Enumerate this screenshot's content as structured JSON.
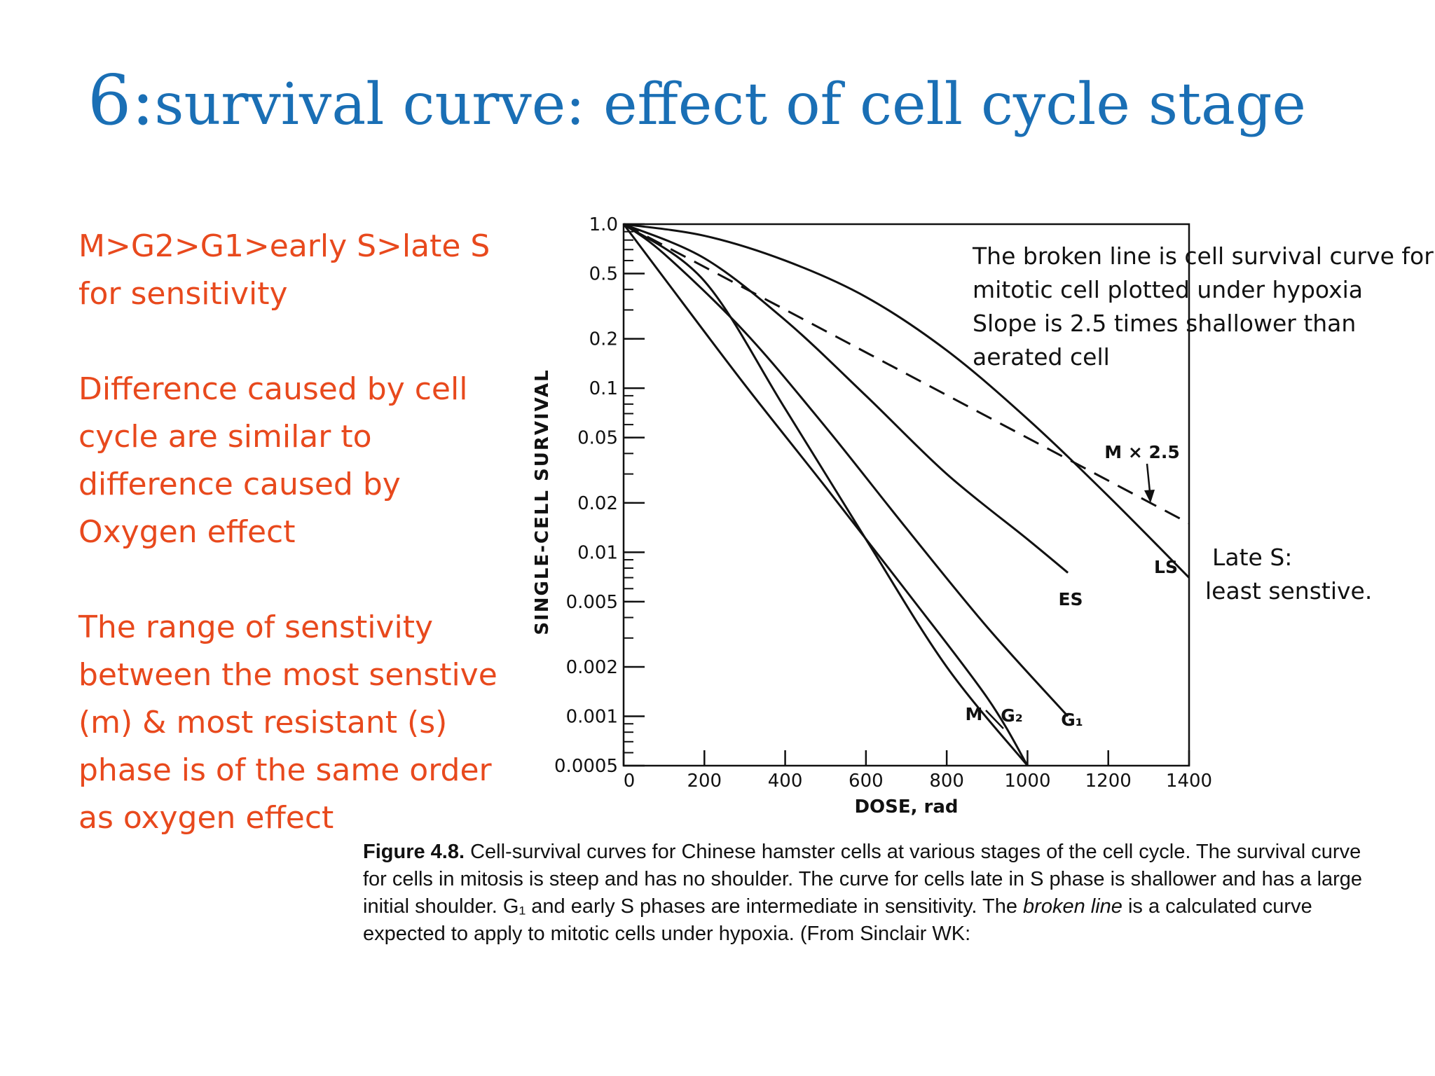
{
  "slide": {
    "title_num": "6:",
    "title_rest": "survival curve: effect of cell cycle stage",
    "bullets": [
      "M>G2>G1>early S>late S for sensitivity",
      "Difference caused by cell cycle are similar to difference caused by Oxygen effect",
      "The range of senstivity between the most senstive (m) & most resistant (s) phase is of the same order as oxygen effect"
    ],
    "annotation_broken_line": [
      "The broken line is cell survival curve for",
      "mitotic cell plotted under hypoxia",
      "Slope is 2.5 times shallower than",
      "aerated cell"
    ],
    "annotation_late_s": [
      "Late S:",
      "least senstive."
    ],
    "caption": {
      "fig_label": "Figure 4.8.",
      "part1": " Cell-survival curves for Chinese hamster cells at various stages of the cell cycle. The survival curve for cells in mitosis is steep and has no shoulder. The curve for cells late in S phase is shallower and has a large initial shoulder. G₁ and early S phases are intermediate in sensitivity. The ",
      "italic": "broken line",
      "part2": " is a calculated curve expected to apply to mitotic cells under hypoxia. (From Sinclair WK:"
    },
    "colors": {
      "title": "#1a6fb5",
      "bullets": "#e8491d",
      "ink": "#111111"
    }
  },
  "chart_data": {
    "type": "line",
    "xlabel": "DOSE, rad",
    "ylabel": "SINGLE-CELL SURVIVAL",
    "xlim": [
      0,
      1400
    ],
    "ylim": [
      0.0005,
      1.0
    ],
    "yscale": "log",
    "x_ticks": [
      0,
      200,
      400,
      600,
      800,
      1000,
      1200,
      1400
    ],
    "x_tick_labels": [
      "0",
      "200",
      "400",
      "600",
      "800",
      "1000",
      "1200",
      "1400"
    ],
    "y_ticks": [
      1.0,
      0.5,
      0.2,
      0.1,
      0.05,
      0.02,
      0.01,
      0.005,
      0.002,
      0.001,
      0.0005
    ],
    "y_tick_labels": [
      "1.0",
      "0.5",
      "0.2",
      "0.1",
      "0.05",
      "0.02",
      "0.01",
      "0.005",
      "0.002",
      "0.001",
      "0.0005"
    ],
    "series": [
      {
        "name": "M",
        "style": "solid",
        "x": [
          0,
          100,
          300,
          500,
          700,
          900,
          1000
        ],
        "y": [
          1.0,
          0.47,
          0.105,
          0.025,
          0.0058,
          0.0013,
          0.0005
        ]
      },
      {
        "name": "G₂",
        "style": "solid",
        "x": [
          0,
          200,
          400,
          600,
          800,
          1000
        ],
        "y": [
          1.0,
          0.45,
          0.075,
          0.012,
          0.002,
          0.0005
        ]
      },
      {
        "name": "G₁",
        "style": "solid",
        "x": [
          0,
          100,
          300,
          500,
          700,
          900,
          1100
        ],
        "y": [
          1.0,
          0.66,
          0.22,
          0.058,
          0.014,
          0.0035,
          0.001
        ]
      },
      {
        "name": "ES",
        "style": "solid",
        "x": [
          0,
          200,
          400,
          600,
          800,
          1000,
          1100
        ],
        "y": [
          1.0,
          0.62,
          0.26,
          0.09,
          0.03,
          0.012,
          0.0075
        ]
      },
      {
        "name": "LS",
        "style": "solid",
        "x": [
          0,
          200,
          400,
          600,
          800,
          1000,
          1200,
          1400
        ],
        "y": [
          1.0,
          0.85,
          0.6,
          0.36,
          0.17,
          0.065,
          0.022,
          0.007
        ]
      },
      {
        "name": "M × 2.5",
        "style": "dashed",
        "x": [
          0,
          1400
        ],
        "y": [
          1.0,
          0.015
        ]
      }
    ]
  }
}
